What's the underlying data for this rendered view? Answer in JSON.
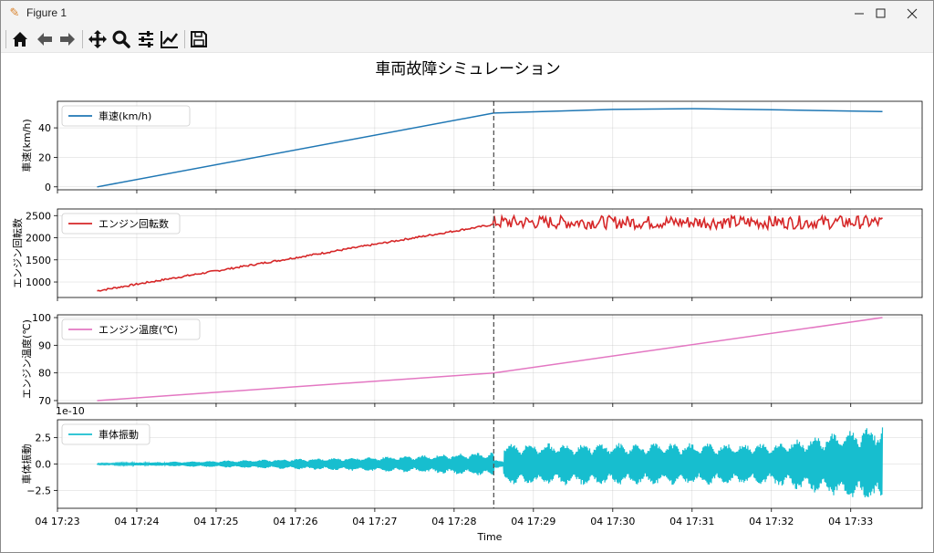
{
  "window": {
    "title": "Figure 1",
    "controls": [
      "minimize",
      "maximize",
      "close"
    ]
  },
  "toolbar": {
    "buttons": [
      {
        "name": "home",
        "icon": "home-icon"
      },
      {
        "name": "back",
        "icon": "arrow-left-icon"
      },
      {
        "name": "forward",
        "icon": "arrow-right-icon"
      },
      {
        "name": "pan",
        "icon": "move-icon"
      },
      {
        "name": "zoom",
        "icon": "magnifier-icon"
      },
      {
        "name": "configure-subplots",
        "icon": "sliders-icon"
      },
      {
        "name": "edit-axis",
        "icon": "line-chart-icon"
      },
      {
        "name": "save",
        "icon": "floppy-disk-icon"
      }
    ]
  },
  "figure": {
    "title": "車両故障シミュレーション",
    "xlabel": "Time"
  },
  "chart_data": [
    {
      "type": "line",
      "ylabel": "車速(km/h)",
      "ylim": [
        -2,
        58
      ],
      "yticks": [
        0,
        20,
        40
      ],
      "grid": true,
      "legend": "top-left",
      "series": [
        {
          "name": "車速(km/h)",
          "color": "#1f77b4",
          "x": [
            "17:23.5",
            "17:28.5",
            "17:30.0",
            "17:31.0",
            "17:32.0",
            "17:33.4"
          ],
          "values": [
            0,
            50,
            52.5,
            53,
            52.3,
            51
          ]
        }
      ]
    },
    {
      "type": "line",
      "ylabel": "エンジン回転数",
      "ylim": [
        650,
        2650
      ],
      "yticks": [
        1000,
        1500,
        2000,
        2500
      ],
      "grid": true,
      "legend": "top-left",
      "series": [
        {
          "name": "エンジン回転数",
          "color": "#d62728",
          "x": [
            "17:23.5",
            "17:28.5",
            "17:33.4"
          ],
          "values": [
            800,
            2300,
            2350
          ],
          "noise_band_after_fault": [
            2200,
            2500
          ]
        }
      ]
    },
    {
      "type": "line",
      "ylabel": "エンジン温度(℃)",
      "ylim": [
        69,
        101
      ],
      "yticks": [
        70,
        80,
        90,
        100
      ],
      "grid": true,
      "legend": "top-left",
      "series": [
        {
          "name": "エンジン温度(℃)",
          "color": "#e377c2",
          "x": [
            "17:23.5",
            "17:28.5",
            "17:33.4"
          ],
          "values": [
            70,
            80,
            100
          ]
        }
      ]
    },
    {
      "type": "line",
      "ylabel": "車体振動",
      "offset_label": "1e-10",
      "ylim": [
        -4.2,
        4.2
      ],
      "yticks": [
        -2.5,
        0.0,
        2.5
      ],
      "yticklabels": [
        "−2.5",
        "0.0",
        "2.5"
      ],
      "grid": true,
      "legend": "top-left",
      "series": [
        {
          "name": "車体振動",
          "color": "#17becf",
          "x": [
            "17:23.5",
            "17:25.5",
            "17:27.5",
            "17:28.5",
            "17:28.6",
            "17:32.0",
            "17:33.4"
          ],
          "amplitude": [
            0.05,
            0.4,
            0.8,
            1.2,
            2.0,
            2.0,
            3.8
          ]
        }
      ]
    }
  ],
  "fault_time": "17:28.5",
  "x_axis": {
    "range": [
      "17:23.0",
      "17:33.9"
    ],
    "tick_labels": [
      "04 17:23",
      "04 17:24",
      "04 17:25",
      "04 17:26",
      "04 17:27",
      "04 17:28",
      "04 17:29",
      "04 17:30",
      "04 17:31",
      "04 17:32",
      "04 17:33"
    ]
  },
  "colors": {
    "grid": "#b0b0b0",
    "fault_line": "#555555",
    "axes": "#000000"
  }
}
